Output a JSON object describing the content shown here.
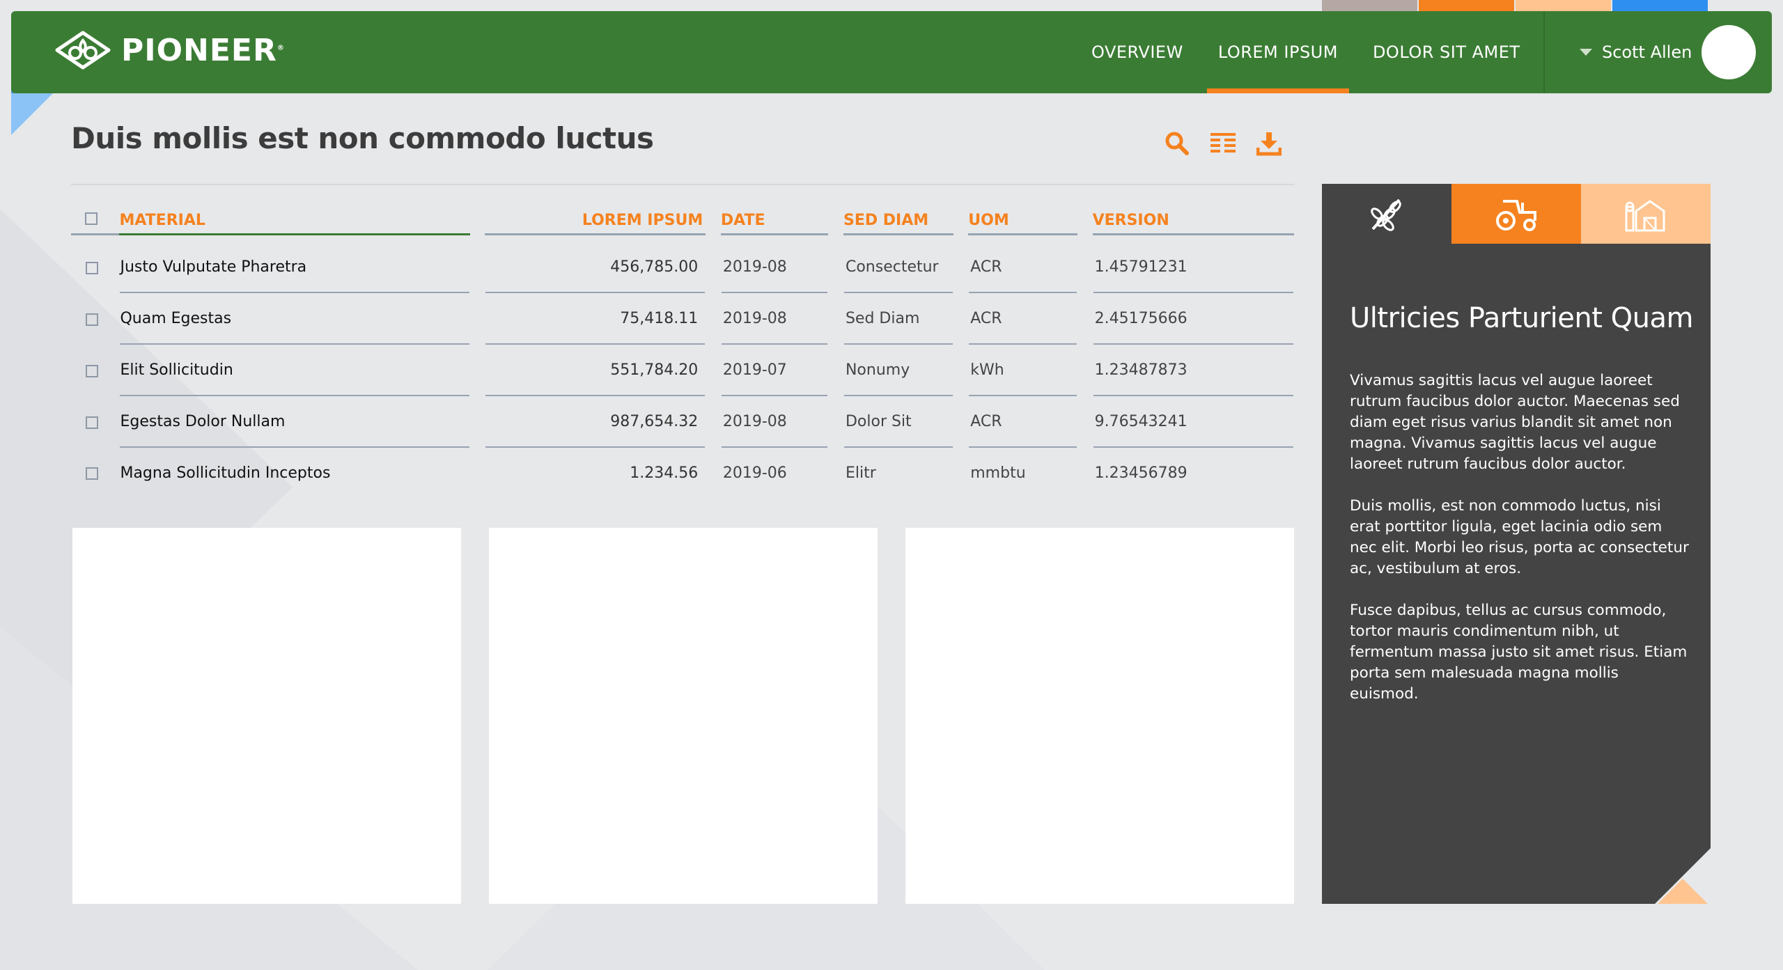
{
  "colors": {
    "brand_green": "#3b7c34",
    "accent_orange": "#f5821f",
    "peach": "#ffc48f",
    "dark_panel": "#444444",
    "swatch_gray": "#b5a8a4",
    "swatch_blue": "#2f8ff0"
  },
  "header": {
    "logo_text": "PIONEER",
    "logo_mark": "®",
    "nav": [
      {
        "label": "OVERVIEW",
        "active": false
      },
      {
        "label": "LOREM IPSUM",
        "active": true
      },
      {
        "label": "DOLOR SIT AMET",
        "active": false
      }
    ],
    "user_name": "Scott Allen"
  },
  "page": {
    "title": "Duis mollis est non commodo luctus",
    "toolbar": [
      {
        "icon": "search-icon"
      },
      {
        "icon": "list-view-icon"
      },
      {
        "icon": "download-icon"
      }
    ]
  },
  "table": {
    "headers": {
      "material": "MATERIAL",
      "lorem": "LOREM IPSUM",
      "date": "DATE",
      "sed": "SED DIAM",
      "uom": "UOM",
      "version": "VERSION"
    },
    "rows": [
      {
        "material": "Justo Vulputate Pharetra",
        "lorem": "456,785.00",
        "date": "2019-08",
        "sed": "Consectetur",
        "uom": "ACR",
        "version": "1.45791231"
      },
      {
        "material": "Quam Egestas",
        "lorem": "75,418.11",
        "date": "2019-08",
        "sed": "Sed Diam",
        "uom": "ACR",
        "version": "2.45175666"
      },
      {
        "material": "Elit Sollicitudin",
        "lorem": "551,784.20",
        "date": "2019-07",
        "sed": "Nonumy",
        "uom": "kWh",
        "version": "1.23487873"
      },
      {
        "material": "Egestas Dolor Nullam",
        "lorem": "987,654.32",
        "date": "2019-08",
        "sed": "Dolor Sit",
        "uom": "ACR",
        "version": "9.76543241"
      },
      {
        "material": "Magna Sollicitudin Inceptos",
        "lorem": "1.234.56",
        "date": "2019-06",
        "sed": "Elitr",
        "uom": "mmbtu",
        "version": "1.23456789"
      }
    ]
  },
  "side_panel": {
    "tabs": [
      {
        "icon": "wheat-icon",
        "active": true
      },
      {
        "icon": "tractor-icon",
        "active": false
      },
      {
        "icon": "barn-icon",
        "active": false
      }
    ],
    "title": "Ultricies Parturient Quam",
    "paragraphs": [
      "Vivamus sagittis lacus vel augue laoreet rutrum faucibus dolor auctor. Maecenas sed diam eget risus varius blandit sit amet non magna. Vivamus sagittis lacus vel augue laoreet rutrum faucibus dolor auctor.",
      "Duis mollis, est non commodo luctus, nisi erat porttitor ligula, eget lacinia odio sem nec elit. Morbi leo risus, porta ac consectetur ac, vestibulum at eros.",
      "Fusce dapibus, tellus ac cursus commodo, tortor mauris condimentum nibh, ut fermentum massa justo sit amet risus. Etiam porta sem malesuada magna mollis euismod."
    ]
  }
}
